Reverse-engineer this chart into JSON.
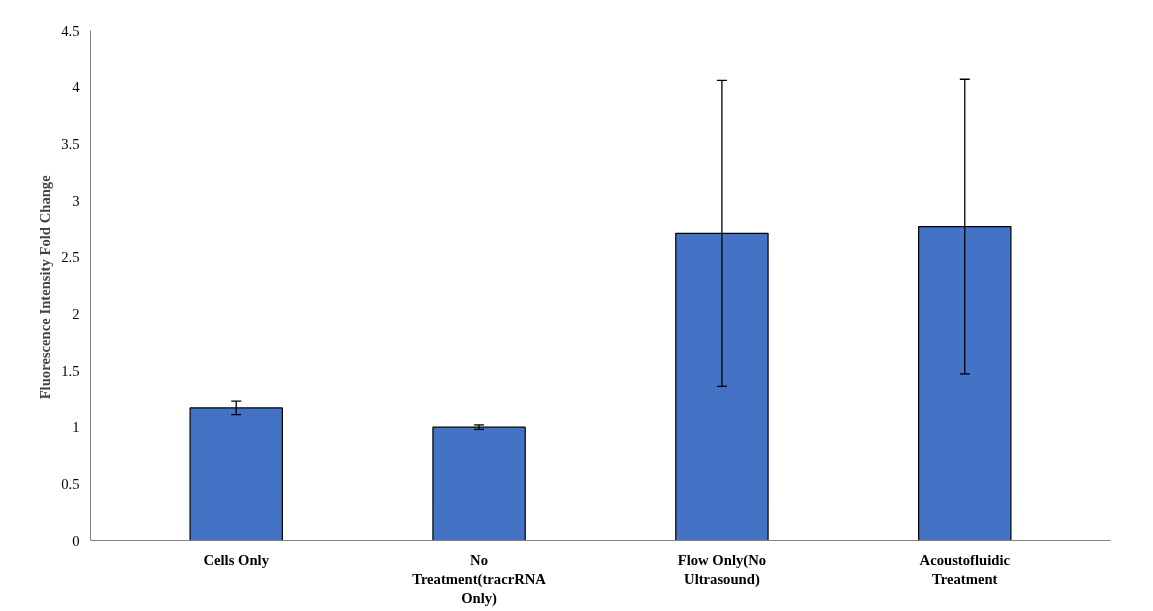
{
  "chart_data": {
    "type": "bar",
    "ylabel": "Fluorescence Intensity  Fold Change",
    "categories": [
      "Cells Only",
      "No Treatment(tracrRNA Only)",
      "Flow Only(No Ultrasound)",
      "Acoustofluidic Treatment"
    ],
    "values": [
      1.17,
      1.0,
      2.71,
      2.77
    ],
    "errors": [
      0.06,
      0.02,
      1.35,
      1.3
    ],
    "color": "#4472c4",
    "ylim": [
      0,
      4.5
    ],
    "yticks": [
      0,
      0.5,
      1,
      1.5,
      2,
      2.5,
      3,
      3.5,
      4,
      4.5
    ],
    "grid": false
  }
}
